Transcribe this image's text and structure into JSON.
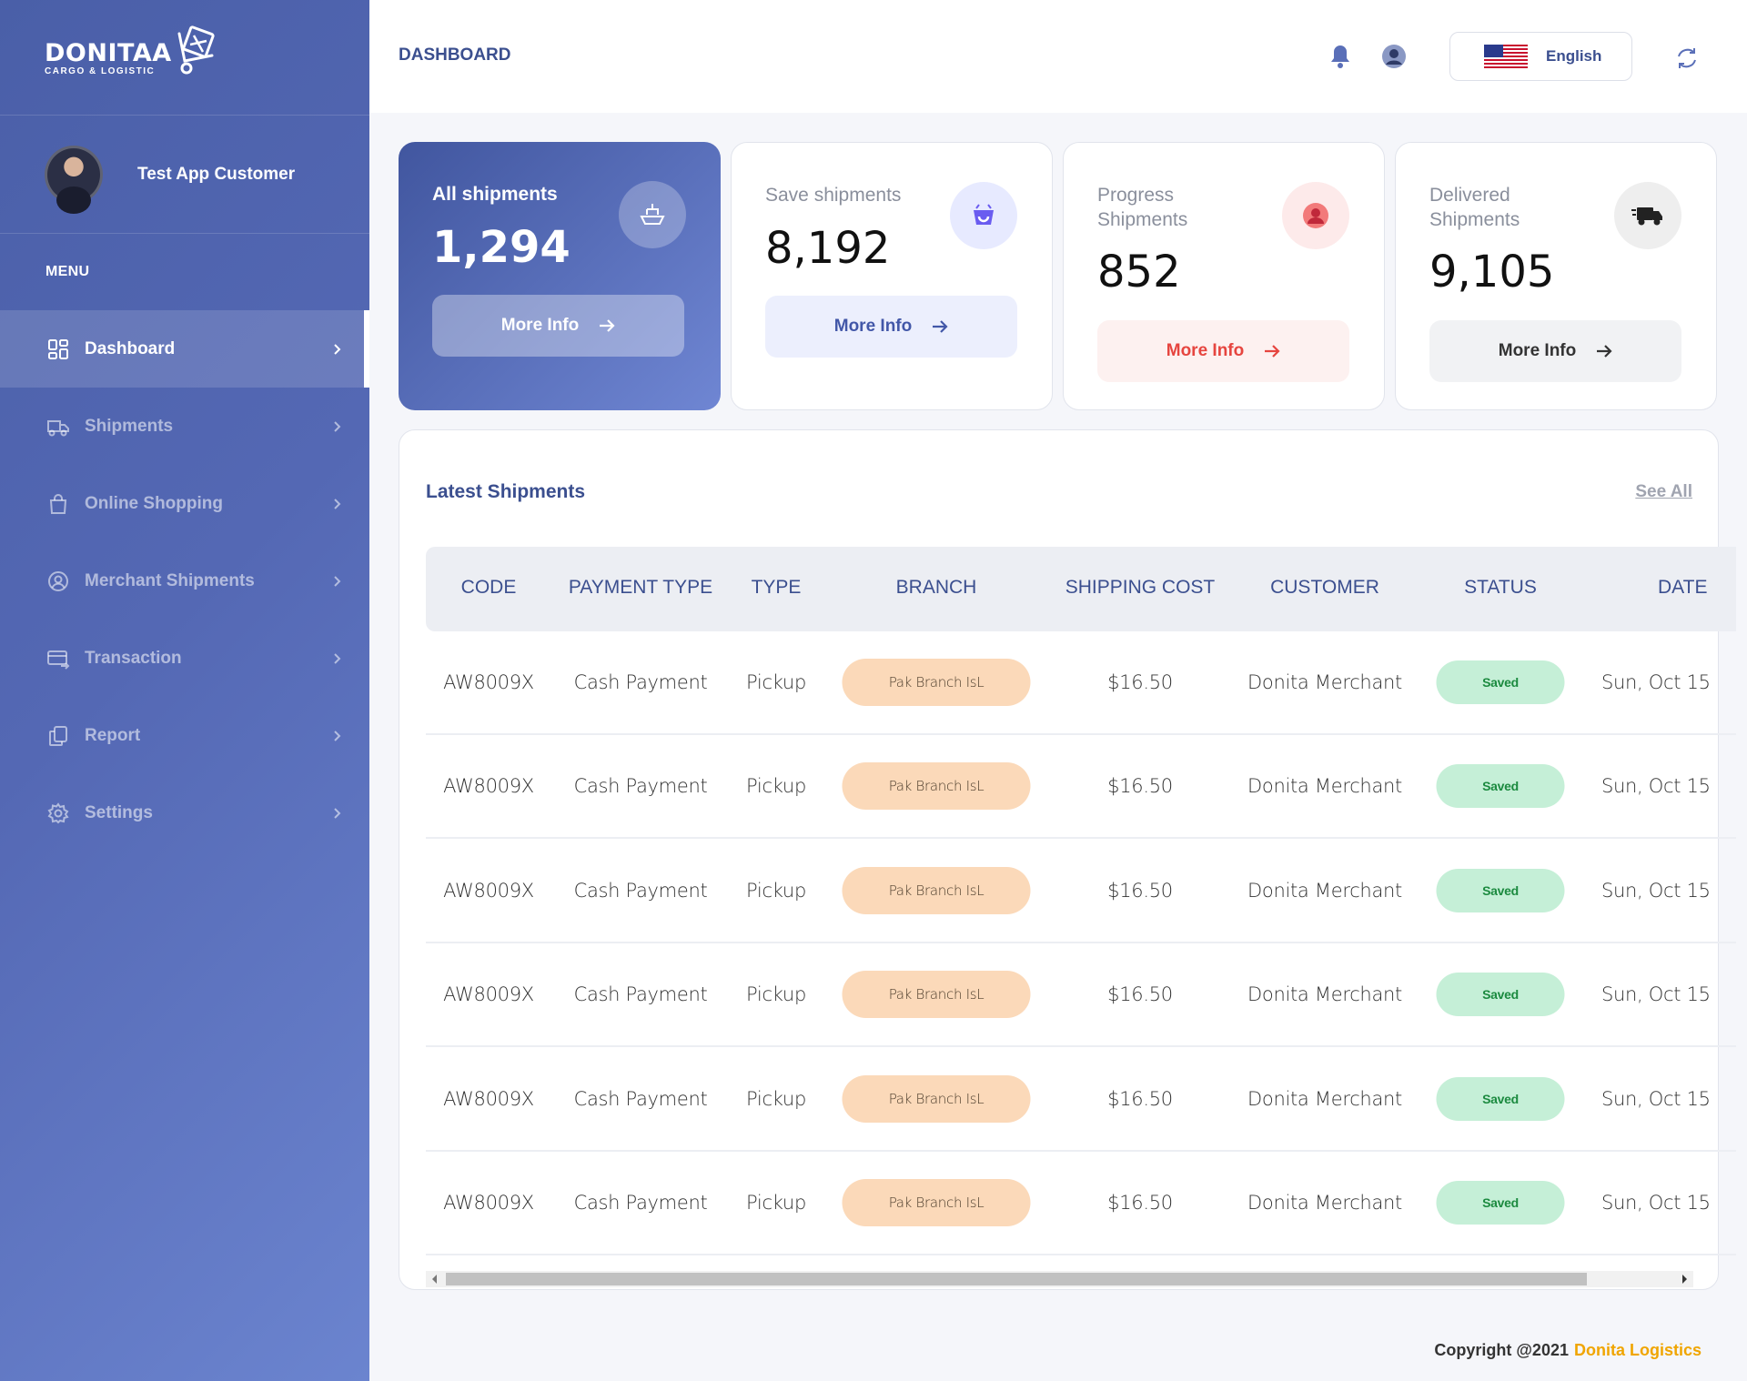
{
  "app": {
    "logo_main": "DONITAA",
    "logo_sub": "CARGO & LOGISTIC"
  },
  "user": {
    "name": "Test App Customer"
  },
  "sidebar": {
    "menu_title": "MENU",
    "items": [
      {
        "label": "Dashboard",
        "icon": "grid-icon",
        "active": true
      },
      {
        "label": "Shipments",
        "icon": "truck-icon"
      },
      {
        "label": "Online Shopping",
        "icon": "shopping-bag-icon"
      },
      {
        "label": "Merchant Shipments",
        "icon": "user-circle-icon"
      },
      {
        "label": "Transaction",
        "icon": "card-transfer-icon"
      },
      {
        "label": "Report",
        "icon": "copy-icon"
      },
      {
        "label": "Settings",
        "icon": "gear-icon"
      }
    ]
  },
  "header": {
    "title": "DASHBOARD",
    "language": "English"
  },
  "cards": [
    {
      "title": "All shipments",
      "value": "1,294",
      "button": "More Info",
      "icon": "ship-icon"
    },
    {
      "title": "Save shipments",
      "value": "8,192",
      "button": "More Info",
      "icon": "basket-icon"
    },
    {
      "title": "Progress Shipments",
      "value": "852",
      "button": "More Info",
      "icon": "user-icon"
    },
    {
      "title": "Delivered Shipments",
      "value": "9,105",
      "button": "More Info",
      "icon": "delivery-truck-icon"
    }
  ],
  "table": {
    "title": "Latest Shipments",
    "see_all": "See All",
    "columns": [
      "CODE",
      "PAYMENT TYPE",
      "TYPE",
      "BRANCH",
      "SHIPPING COST",
      "CUSTOMER",
      "STATUS",
      "DATE"
    ],
    "rows": [
      {
        "code": "AW8009X",
        "payment": "Cash Payment",
        "type": "Pickup",
        "branch": "Pak Branch IsL",
        "cost": "$16.50",
        "customer": "Donita Merchant",
        "status": "Saved",
        "date": "Sun, Oct 15"
      },
      {
        "code": "AW8009X",
        "payment": "Cash Payment",
        "type": "Pickup",
        "branch": "Pak Branch IsL",
        "cost": "$16.50",
        "customer": "Donita Merchant",
        "status": "Saved",
        "date": "Sun, Oct 15"
      },
      {
        "code": "AW8009X",
        "payment": "Cash Payment",
        "type": "Pickup",
        "branch": "Pak Branch IsL",
        "cost": "$16.50",
        "customer": "Donita Merchant",
        "status": "Saved",
        "date": "Sun, Oct 15"
      },
      {
        "code": "AW8009X",
        "payment": "Cash Payment",
        "type": "Pickup",
        "branch": "Pak Branch IsL",
        "cost": "$16.50",
        "customer": "Donita Merchant",
        "status": "Saved",
        "date": "Sun, Oct 15"
      },
      {
        "code": "AW8009X",
        "payment": "Cash Payment",
        "type": "Pickup",
        "branch": "Pak Branch IsL",
        "cost": "$16.50",
        "customer": "Donita Merchant",
        "status": "Saved",
        "date": "Sun, Oct 15"
      },
      {
        "code": "AW8009X",
        "payment": "Cash Payment",
        "type": "Pickup",
        "branch": "Pak Branch IsL",
        "cost": "$16.50",
        "customer": "Donita Merchant",
        "status": "Saved",
        "date": "Sun, Oct 15"
      }
    ]
  },
  "footer": {
    "copyright": "Copyright @2021",
    "brand": "Donita Logistics"
  },
  "colors": {
    "primary": "#4a5fa8",
    "accent_orange": "#f0a500",
    "status_saved": "#1b8a3f",
    "branch_pill": "#fbd9b9"
  }
}
